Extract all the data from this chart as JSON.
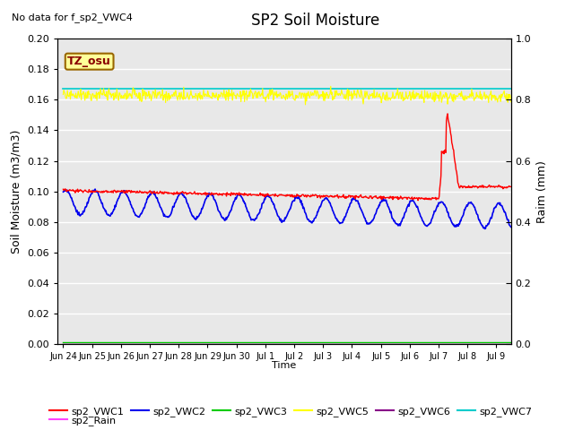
{
  "title": "SP2 Soil Moisture",
  "top_left_note": "No data for f_sp2_VWC4",
  "annotation_text": "TZ_osu",
  "annotation_color": "#880000",
  "annotation_bg": "#ffff99",
  "annotation_border": "#996600",
  "xlabel": "Time",
  "ylabel_left": "Soil Moisture (m3/m3)",
  "ylabel_right": "Raim (mm)",
  "ylim_left": [
    0.0,
    0.2
  ],
  "ylim_right": [
    0.0,
    1.0
  ],
  "bg_color": "#e8e8e8",
  "fig_bg": "#ffffff",
  "tick_labels": [
    "Jun 24",
    "Jun 25",
    "Jun 26",
    "Jun 27",
    "Jun 28",
    "Jun 29",
    "Jun 30",
    "Jul 1",
    "Jul 2",
    "Jul 3",
    "Jul 4",
    "Jul 5",
    "Jul 6",
    "Jul 7",
    "Jul 8",
    "Jul 9"
  ],
  "tick_positions": [
    0,
    1,
    2,
    3,
    4,
    5,
    6,
    7,
    8,
    9,
    10,
    11,
    12,
    13,
    14,
    15
  ],
  "colors": {
    "sp2_VWC1": "#ff0000",
    "sp2_VWC2": "#0000ee",
    "sp2_VWC3": "#00cc00",
    "sp2_VWC5": "#ffff00",
    "sp2_VWC6": "#880088",
    "sp2_VWC7": "#00cccc",
    "sp2_Rain": "#ff44ff"
  },
  "legend_entries": [
    "sp2_VWC1",
    "sp2_VWC2",
    "sp2_VWC3",
    "sp2_VWC5",
    "sp2_VWC6",
    "sp2_VWC7",
    "sp2_Rain"
  ],
  "grid_color": "#d0d0d0",
  "right_ticks": [
    0.0,
    0.2,
    0.4,
    0.6,
    0.8,
    1.0
  ]
}
